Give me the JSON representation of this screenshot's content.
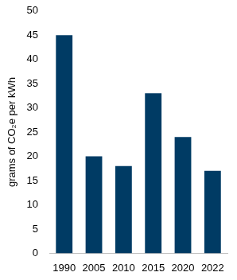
{
  "chart_data": {
    "type": "bar",
    "y_label": "grams of CO₂e per kWh",
    "categories": [
      "1990",
      "2005",
      "2010",
      "2015",
      "2020",
      "2022"
    ],
    "values": [
      45,
      20,
      18,
      33,
      24,
      17
    ],
    "color": "#003b64",
    "ylim": [
      0,
      50
    ],
    "yticks": [
      0,
      5,
      10,
      15,
      20,
      25,
      30,
      35,
      40,
      45,
      50
    ],
    "grid": false
  }
}
